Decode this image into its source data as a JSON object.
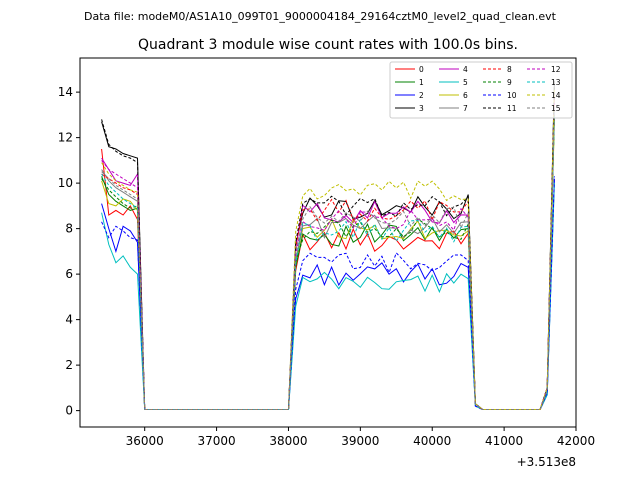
{
  "chart_data": {
    "type": "line",
    "suptitle": "Data file: modeM0/AS1A10_099T01_9000004184_29164cztM0_level2_quad_clean.evt",
    "title": "Quadrant 3 module wise count rates with 100.0s bins.",
    "xlabel": "",
    "ylabel": "",
    "x_offset_label": "+3.513e8",
    "xlim": [
      35100,
      42000
    ],
    "ylim": [
      -0.72,
      15.5
    ],
    "xticks": [
      36000,
      37000,
      38000,
      39000,
      40000,
      41000,
      42000
    ],
    "xtick_labels": [
      "36000",
      "37000",
      "38000",
      "39000",
      "40000",
      "41000",
      "42000"
    ],
    "yticks": [
      0,
      2,
      4,
      6,
      8,
      10,
      12,
      14
    ],
    "ytick_labels": [
      "0",
      "2",
      "4",
      "6",
      "8",
      "10",
      "12",
      "14"
    ],
    "legend_position": "upper right",
    "segments": [
      {
        "x_start": 35400,
        "count": 6
      },
      {
        "x_start": 36000,
        "count": 1
      },
      {
        "x_start": 38000,
        "count": 1
      },
      {
        "x_start": 38100,
        "count": 24
      },
      {
        "x_start": 40500,
        "count": 2
      },
      {
        "x_start": 40700,
        "count": 1
      },
      {
        "x_start": 41500,
        "count": 3
      }
    ],
    "series": [
      {
        "name": "0",
        "color": "#ff0000",
        "dash": "solid",
        "pre": [
          11.5,
          8.6,
          8.8,
          8.6,
          9.0,
          8.4
        ],
        "plateau": 7.5,
        "post": [
          7.8,
          0.3
        ],
        "end": [
          0.05,
          0.9,
          13.5
        ]
      },
      {
        "name": "1",
        "color": "#008000",
        "dash": "solid",
        "pre": [
          10.3,
          9.5,
          9.2,
          9.0,
          8.8,
          8.9
        ],
        "plateau": 7.7,
        "post": [
          8.0,
          0.3
        ],
        "end": [
          0.05,
          0.9,
          13.0
        ]
      },
      {
        "name": "2",
        "color": "#0000ff",
        "dash": "solid",
        "pre": [
          9.1,
          8.0,
          7.0,
          8.1,
          7.9,
          7.4
        ],
        "plateau": 6.0,
        "post": [
          6.3,
          0.2
        ],
        "end": [
          0.05,
          0.7,
          10.2
        ]
      },
      {
        "name": "3",
        "color": "#000000",
        "dash": "solid",
        "pre": [
          12.7,
          11.6,
          11.5,
          11.3,
          11.2,
          11.1
        ],
        "plateau": 8.9,
        "post": [
          9.5,
          0.3
        ],
        "end": [
          0.05,
          1.0,
          14.5
        ]
      },
      {
        "name": "4",
        "color": "#bf00bf",
        "dash": "solid",
        "pre": [
          11.1,
          10.6,
          10.1,
          10.0,
          9.9,
          10.4
        ],
        "plateau": 8.7,
        "post": [
          8.6,
          0.3
        ],
        "end": [
          0.05,
          1.0,
          13.8
        ]
      },
      {
        "name": "5",
        "color": "#00bfbf",
        "dash": "solid",
        "pre": [
          8.7,
          7.3,
          6.5,
          6.8,
          6.3,
          6.0
        ],
        "plateau": 5.6,
        "post": [
          5.8,
          0.2
        ],
        "end": [
          0.05,
          0.7,
          10.0
        ]
      },
      {
        "name": "6",
        "color": "#bfbf00",
        "dash": "solid",
        "pre": [
          10.1,
          9.1,
          9.0,
          9.3,
          9.2,
          8.8
        ],
        "plateau": 8.0,
        "post": [
          7.9,
          0.3
        ],
        "end": [
          0.05,
          0.9,
          12.8
        ]
      },
      {
        "name": "7",
        "color": "#808080",
        "dash": "solid",
        "pre": [
          10.6,
          10.1,
          9.8,
          9.6,
          9.4,
          9.2
        ],
        "plateau": 8.1,
        "post": [
          8.3,
          0.3
        ],
        "end": [
          0.05,
          0.9,
          13.2
        ]
      },
      {
        "name": "8",
        "color": "#ff0000",
        "dash": "dashed",
        "pre": [
          10.4,
          10.2,
          10.0,
          9.8,
          9.7,
          9.5
        ],
        "plateau": 8.8,
        "post": [
          9.2,
          0.3
        ],
        "end": [
          0.05,
          1.0,
          14.0
        ]
      },
      {
        "name": "9",
        "color": "#008000",
        "dash": "dashed",
        "pre": [
          10.2,
          9.7,
          9.4,
          9.1,
          8.9,
          9.0
        ],
        "plateau": 8.0,
        "post": [
          8.2,
          0.3
        ],
        "end": [
          0.05,
          0.9,
          13.0
        ]
      },
      {
        "name": "10",
        "color": "#0000ff",
        "dash": "dashed",
        "pre": [
          8.3,
          7.6,
          8.1,
          7.9,
          7.6,
          7.5
        ],
        "plateau": 6.5,
        "post": [
          6.6,
          0.2
        ],
        "end": [
          0.05,
          0.8,
          10.3
        ]
      },
      {
        "name": "11",
        "color": "#000000",
        "dash": "dashed",
        "pre": [
          12.8,
          11.7,
          11.4,
          11.2,
          11.1,
          10.9
        ],
        "plateau": 9.0,
        "post": [
          9.4,
          0.3
        ],
        "end": [
          0.05,
          1.0,
          14.3
        ]
      },
      {
        "name": "12",
        "color": "#bf00bf",
        "dash": "dashed",
        "pre": [
          11.0,
          10.6,
          10.4,
          10.2,
          10.0,
          9.8
        ],
        "plateau": 8.4,
        "post": [
          8.5,
          0.3
        ],
        "end": [
          0.05,
          1.0,
          13.6
        ]
      },
      {
        "name": "13",
        "color": "#00bfbf",
        "dash": "dashed",
        "pre": [
          10.4,
          9.9,
          9.6,
          9.3,
          9.1,
          8.9
        ],
        "plateau": 7.9,
        "post": [
          8.1,
          0.3
        ],
        "end": [
          0.05,
          0.9,
          13.1
        ]
      },
      {
        "name": "14",
        "color": "#bfbf00",
        "dash": "dashed",
        "pre": [
          10.9,
          10.4,
          10.1,
          9.9,
          9.7,
          9.6
        ],
        "plateau": 9.6,
        "post": [
          9.3,
          0.3
        ],
        "end": [
          0.05,
          1.0,
          14.2
        ]
      },
      {
        "name": "15",
        "color": "#808080",
        "dash": "dashed",
        "pre": [
          10.5,
          10.2,
          9.9,
          9.7,
          9.5,
          9.3
        ],
        "plateau": 8.5,
        "post": [
          8.7,
          0.3
        ],
        "end": [
          0.05,
          0.9,
          13.4
        ]
      }
    ]
  }
}
